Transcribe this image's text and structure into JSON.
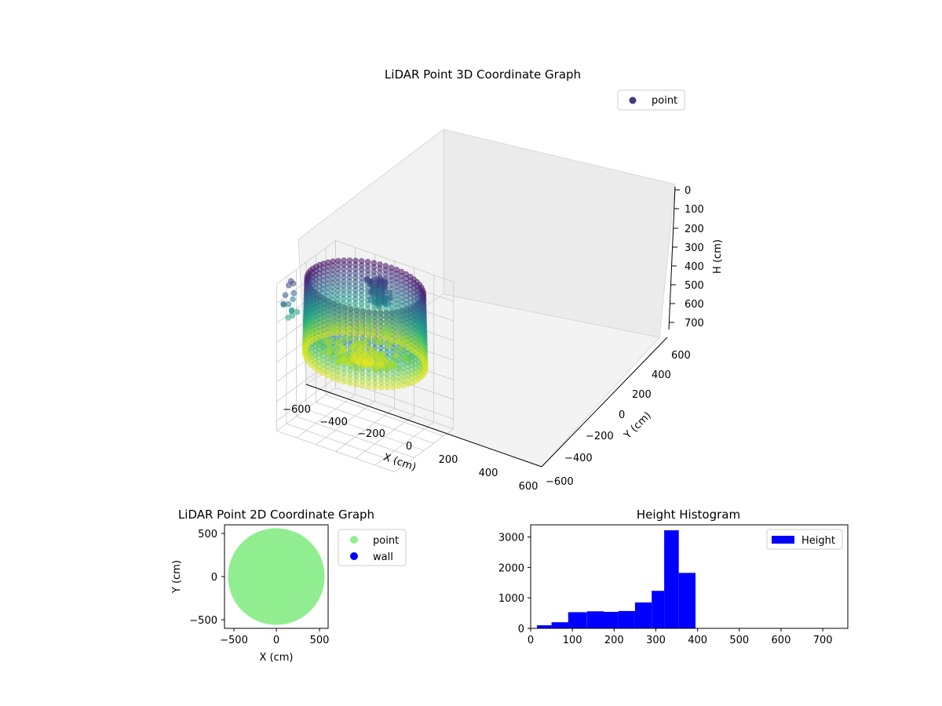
{
  "chart_data": [
    {
      "type": "scatter",
      "title": "LiDAR Point 3D Coordinate Graph",
      "xlabel": "X (cm)",
      "ylabel": "Y (cm)",
      "zlabel": "H (cm)",
      "xlim": [
        -600,
        600
      ],
      "ylim": [
        -600,
        600
      ],
      "zlim": [
        0,
        750
      ],
      "z_inverted": true,
      "x_ticks": [
        "−600",
        "−400",
        "−200",
        "0",
        "200",
        "400",
        "600"
      ],
      "y_ticks": [
        "−600",
        "−400",
        "−200",
        "0",
        "200",
        "400",
        "600"
      ],
      "z_ticks": [
        "0",
        "100",
        "200",
        "300",
        "400",
        "500",
        "600",
        "700"
      ],
      "legend": [
        {
          "label": "point",
          "color": "#443983"
        }
      ],
      "legend_position": "top-right",
      "colormap": "viridis",
      "grid": true,
      "shape": "ring of points, radius about 550 cm, heights about 0 to 400 cm"
    },
    {
      "type": "scatter",
      "title": "LiDAR Point 2D Coordinate Graph",
      "xlabel": "X (cm)",
      "ylabel": "Y (cm)",
      "xlim": [
        -600,
        600
      ],
      "ylim": [
        -600,
        600
      ],
      "x_ticks": [
        "−500",
        "0",
        "500"
      ],
      "y_ticks": [
        "−500",
        "0",
        "500"
      ],
      "series": [
        {
          "name": "point",
          "color": "#90ee90",
          "shape": "disc",
          "center": [
            0,
            0
          ],
          "radius": 560
        },
        {
          "name": "wall",
          "color": "#0000ff",
          "points": []
        }
      ],
      "legend_position": "outside-right"
    },
    {
      "type": "bar",
      "title": "Height Histogram",
      "xlim": [
        0,
        760
      ],
      "ylim": [
        0,
        3400
      ],
      "x_ticks": [
        "0",
        "100",
        "200",
        "300",
        "400",
        "500",
        "600",
        "700"
      ],
      "y_ticks": [
        "0",
        "1000",
        "2000",
        "3000"
      ],
      "bin_edges": [
        15,
        50,
        90,
        135,
        175,
        210,
        250,
        290,
        320,
        355,
        395
      ],
      "values": [
        100,
        200,
        530,
        560,
        540,
        570,
        850,
        1230,
        3220,
        1820
      ],
      "series": [
        {
          "name": "Height",
          "color": "#0000ff"
        }
      ],
      "legend_position": "top-right"
    }
  ]
}
